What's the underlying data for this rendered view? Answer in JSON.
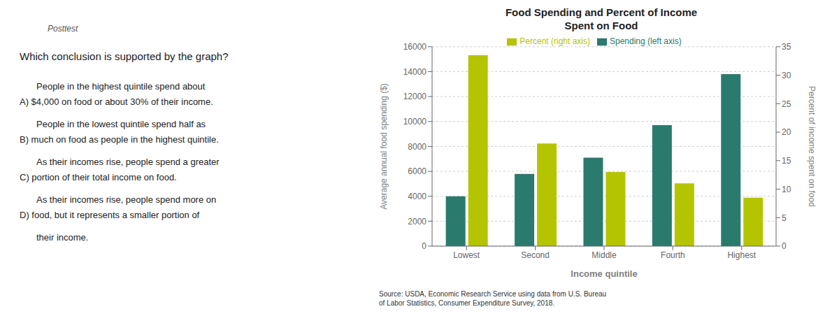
{
  "chart_data": {
    "type": "bar",
    "title": "Food Spending and Percent of Income\nSpent on Food",
    "categories": [
      "Lowest",
      "Second",
      "Middle",
      "Fourth",
      "Highest"
    ],
    "series": [
      {
        "name": "Spending (left axis)",
        "color": "#2a7a6e",
        "values": [
          4000,
          5800,
          7100,
          9700,
          13800
        ]
      },
      {
        "name": "Percent (right axis)",
        "color": "#b5c400",
        "axis": "y2",
        "values": [
          33.5,
          18.0,
          13.0,
          11.0,
          8.5
        ]
      }
    ],
    "xlabel": "Income quintile",
    "ylabel": "Average annual food spending ($)",
    "y2label": "Percent of income spent on food",
    "ylim": [
      0,
      16000
    ],
    "yticks": [
      0,
      2000,
      4000,
      6000,
      8000,
      10000,
      12000,
      14000,
      16000
    ],
    "y2lim": [
      0,
      35
    ],
    "y2ticks": [
      0,
      5,
      10,
      15,
      20,
      25,
      30,
      35
    ],
    "grid": true,
    "legend": "top",
    "annotations": [
      "Posttest",
      "Which conclusion is supported by the graph?",
      "People in the highest quintile spend about",
      "A) $4,000 on food or about 30% of their income.",
      "People in the lowest quintile spend half as",
      "B) much on food as people in the highest quintile.",
      "As their incomes rise, people spend a greater",
      "C) portion of their total income on food.",
      "As their incomes rise, people spend more on",
      "D) food, but it represents a smaller portion of",
      "their income.",
      "Source: USDA, Economic Research Service using data from U.S. Bureau\nof Labor Statistics, Consumer Expenditure Survey, 2018."
    ]
  }
}
